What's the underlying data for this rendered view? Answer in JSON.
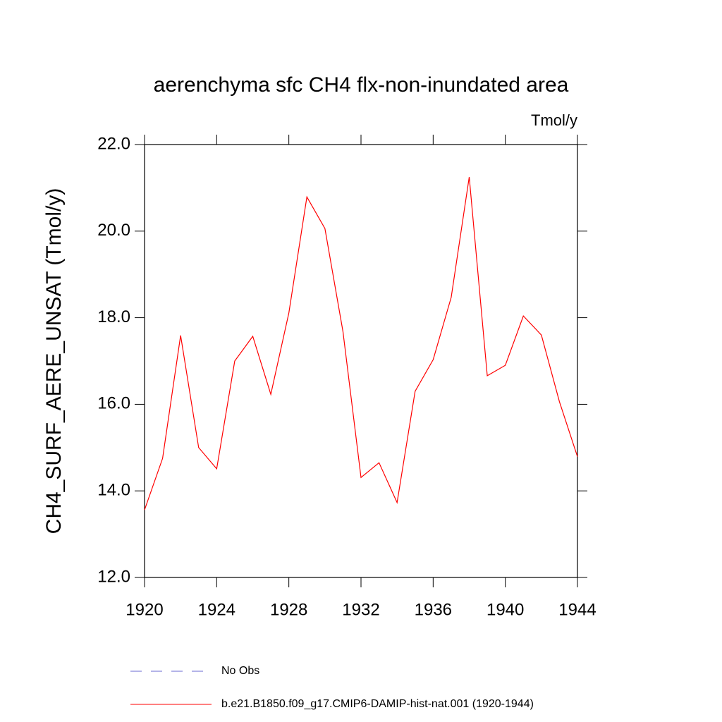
{
  "chart_data": {
    "type": "line",
    "title": "aerenchyma sfc CH4 flx-non-inundated area",
    "units": "Tmol/y",
    "y_label": "CH4_SURF_AERE_UNSAT  (Tmol/y)",
    "x": [
      1920,
      1921,
      1922,
      1923,
      1924,
      1925,
      1926,
      1927,
      1928,
      1929,
      1930,
      1931,
      1932,
      1933,
      1934,
      1935,
      1936,
      1937,
      1938,
      1939,
      1940,
      1941,
      1942,
      1943,
      1944
    ],
    "series": [
      {
        "name": "No Obs",
        "color": "#6a6ad0",
        "dashed": true,
        "values": [
          null,
          null,
          null,
          null,
          null,
          null,
          null,
          null,
          null,
          null,
          null,
          null,
          null,
          null,
          null,
          null,
          null,
          null,
          null,
          null,
          null,
          null,
          null,
          null,
          null
        ]
      },
      {
        "name": "b.e21.B1850.f09_g17.CMIP6-DAMIP-hist-nat.001 (1920-1944)",
        "color": "#ff0000",
        "dashed": false,
        "values": [
          13.56,
          14.75,
          17.59,
          15.0,
          14.51,
          17.0,
          17.57,
          16.23,
          18.11,
          20.79,
          20.06,
          17.68,
          14.31,
          14.65,
          13.73,
          16.3,
          17.03,
          18.47,
          21.25,
          16.66,
          16.9,
          18.04,
          17.6,
          16.06,
          14.79
        ]
      }
    ],
    "xlim": [
      1920,
      1944
    ],
    "xticks": [
      1920,
      1924,
      1928,
      1932,
      1936,
      1940,
      1944
    ],
    "ylim": [
      12,
      22
    ],
    "yticks": [
      {
        "value": 12,
        "label": "12.0"
      },
      {
        "value": 14,
        "label": "14.0"
      },
      {
        "value": 16,
        "label": "16.0"
      },
      {
        "value": 18,
        "label": "18.0"
      },
      {
        "value": 20,
        "label": "20.0"
      },
      {
        "value": 22,
        "label": "22.0"
      }
    ]
  }
}
